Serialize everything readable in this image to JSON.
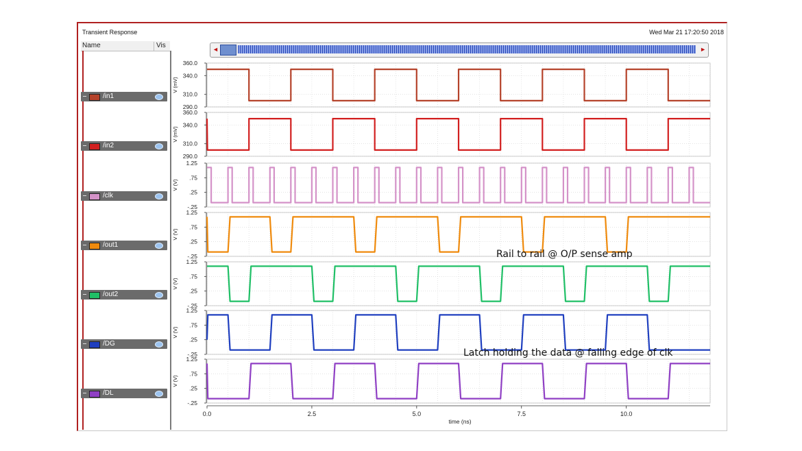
{
  "window": {
    "title": "Transient Response",
    "timestamp": "Wed Mar 21 17:20:50 2018",
    "name_header": "Name",
    "vis_header": "Vis"
  },
  "colors": {
    "in1": "#b5422a",
    "in2": "#d21f1f",
    "clk": "#d492c8",
    "out1": "#ef8a0c",
    "out2": "#1fbf66",
    "DG": "#1f3fbf",
    "DL": "#8f3fc4"
  },
  "annotations": {
    "rail": "Rail to rail @ O/P sense amp",
    "latch": "Latch holding the data @ falling edge of clk"
  },
  "chart_data": {
    "type": "line",
    "xlabel": "time (ns)",
    "xlim": [
      0,
      12
    ],
    "xticks": [
      "0.0",
      "2.5",
      "5.0",
      "7.5",
      "10.0"
    ],
    "xtick_values": [
      0,
      2.5,
      5.0,
      7.5,
      10.0
    ],
    "grid": true,
    "series": [
      {
        "name": "/in1",
        "key": "in1",
        "ylabel": "V (mV)",
        "ylim": [
          290,
          360
        ],
        "yticks": [
          "360.0",
          "340.0",
          "310.0",
          "290.0"
        ],
        "ytick_values": [
          360,
          340,
          310,
          290
        ],
        "points": [
          [
            0,
            350
          ],
          [
            1,
            350
          ],
          [
            1,
            300
          ],
          [
            2,
            300
          ],
          [
            2,
            350
          ],
          [
            3,
            350
          ],
          [
            3,
            300
          ],
          [
            4,
            300
          ],
          [
            4,
            350
          ],
          [
            5,
            350
          ],
          [
            5,
            300
          ],
          [
            6,
            300
          ],
          [
            6,
            350
          ],
          [
            7,
            350
          ],
          [
            7,
            300
          ],
          [
            8,
            300
          ],
          [
            8,
            350
          ],
          [
            9,
            350
          ],
          [
            9,
            300
          ],
          [
            10,
            300
          ],
          [
            10,
            350
          ],
          [
            11,
            350
          ],
          [
            11,
            300
          ],
          [
            12,
            300
          ]
        ]
      },
      {
        "name": "/in2",
        "key": "in2",
        "ylabel": "V (mV)",
        "ylim": [
          290,
          360
        ],
        "yticks": [
          "360.0",
          "340.0",
          "310.0",
          "290.0"
        ],
        "ytick_values": [
          360,
          340,
          310,
          290
        ],
        "points": [
          [
            0,
            350
          ],
          [
            0.01,
            300
          ],
          [
            1,
            300
          ],
          [
            1,
            350
          ],
          [
            2,
            350
          ],
          [
            2,
            300
          ],
          [
            3,
            300
          ],
          [
            3,
            350
          ],
          [
            4,
            350
          ],
          [
            4,
            300
          ],
          [
            5,
            300
          ],
          [
            5,
            350
          ],
          [
            6,
            350
          ],
          [
            6,
            300
          ],
          [
            7,
            300
          ],
          [
            7,
            350
          ],
          [
            8,
            350
          ],
          [
            8,
            300
          ],
          [
            9,
            300
          ],
          [
            9,
            350
          ],
          [
            10,
            350
          ],
          [
            10,
            300
          ],
          [
            11,
            300
          ],
          [
            11,
            350
          ],
          [
            12,
            350
          ]
        ]
      },
      {
        "name": "/clk",
        "key": "clk",
        "ylabel": "V (V)",
        "ylim": [
          -0.25,
          1.25
        ],
        "yticks": [
          "1.25",
          ".75",
          ".25",
          "-.25"
        ],
        "ytick_values": [
          1.25,
          0.75,
          0.25,
          -0.25
        ],
        "points": [
          [
            0,
            1.1
          ],
          [
            0.1,
            1.1
          ],
          [
            0.1,
            -0.1
          ],
          [
            0.5,
            -0.1
          ],
          [
            0.5,
            1.1
          ],
          [
            0.6,
            1.1
          ],
          [
            0.6,
            -0.1
          ],
          [
            1.0,
            -0.1
          ],
          [
            1.0,
            1.1
          ],
          [
            1.1,
            1.1
          ],
          [
            1.1,
            -0.1
          ],
          [
            1.5,
            -0.1
          ],
          [
            1.5,
            1.1
          ],
          [
            1.6,
            1.1
          ],
          [
            1.6,
            -0.1
          ],
          [
            2.0,
            -0.1
          ],
          [
            2.0,
            1.1
          ],
          [
            2.1,
            1.1
          ],
          [
            2.1,
            -0.1
          ],
          [
            2.5,
            -0.1
          ],
          [
            2.5,
            1.1
          ],
          [
            2.6,
            1.1
          ],
          [
            2.6,
            -0.1
          ],
          [
            3.0,
            -0.1
          ],
          [
            3.0,
            1.1
          ],
          [
            3.1,
            1.1
          ],
          [
            3.1,
            -0.1
          ],
          [
            3.5,
            -0.1
          ],
          [
            3.5,
            1.1
          ],
          [
            3.6,
            1.1
          ],
          [
            3.6,
            -0.1
          ],
          [
            4.0,
            -0.1
          ],
          [
            4.0,
            1.1
          ],
          [
            4.1,
            1.1
          ],
          [
            4.1,
            -0.1
          ],
          [
            4.5,
            -0.1
          ],
          [
            4.5,
            1.1
          ],
          [
            4.6,
            1.1
          ],
          [
            4.6,
            -0.1
          ],
          [
            5.0,
            -0.1
          ],
          [
            5.0,
            1.1
          ],
          [
            5.1,
            1.1
          ],
          [
            5.1,
            -0.1
          ],
          [
            5.5,
            -0.1
          ],
          [
            5.5,
            1.1
          ],
          [
            5.6,
            1.1
          ],
          [
            5.6,
            -0.1
          ],
          [
            6.0,
            -0.1
          ],
          [
            6.0,
            1.1
          ],
          [
            6.1,
            1.1
          ],
          [
            6.1,
            -0.1
          ],
          [
            6.5,
            -0.1
          ],
          [
            6.5,
            1.1
          ],
          [
            6.6,
            1.1
          ],
          [
            6.6,
            -0.1
          ],
          [
            7.0,
            -0.1
          ],
          [
            7.0,
            1.1
          ],
          [
            7.1,
            1.1
          ],
          [
            7.1,
            -0.1
          ],
          [
            7.5,
            -0.1
          ],
          [
            7.5,
            1.1
          ],
          [
            7.6,
            1.1
          ],
          [
            7.6,
            -0.1
          ],
          [
            8.0,
            -0.1
          ],
          [
            8.0,
            1.1
          ],
          [
            8.1,
            1.1
          ],
          [
            8.1,
            -0.1
          ],
          [
            8.5,
            -0.1
          ],
          [
            8.5,
            1.1
          ],
          [
            8.6,
            1.1
          ],
          [
            8.6,
            -0.1
          ],
          [
            9.0,
            -0.1
          ],
          [
            9.0,
            1.1
          ],
          [
            9.1,
            1.1
          ],
          [
            9.1,
            -0.1
          ],
          [
            9.5,
            -0.1
          ],
          [
            9.5,
            1.1
          ],
          [
            9.6,
            1.1
          ],
          [
            9.6,
            -0.1
          ],
          [
            10.0,
            -0.1
          ],
          [
            10.0,
            1.1
          ],
          [
            10.1,
            1.1
          ],
          [
            10.1,
            -0.1
          ],
          [
            10.5,
            -0.1
          ],
          [
            10.5,
            1.1
          ],
          [
            10.6,
            1.1
          ],
          [
            10.6,
            -0.1
          ],
          [
            11.0,
            -0.1
          ],
          [
            11.0,
            1.1
          ],
          [
            11.1,
            1.1
          ],
          [
            11.1,
            -0.1
          ],
          [
            11.5,
            -0.1
          ],
          [
            11.5,
            1.1
          ],
          [
            11.6,
            1.1
          ],
          [
            11.6,
            -0.1
          ],
          [
            12,
            -0.1
          ]
        ]
      },
      {
        "name": "/out1",
        "key": "out1",
        "ylabel": "V (V)",
        "ylim": [
          -0.25,
          1.25
        ],
        "yticks": [
          "1.25",
          ".75",
          ".25",
          "-.25"
        ],
        "ytick_values": [
          1.25,
          0.75,
          0.25,
          -0.25
        ],
        "points": [
          [
            0,
            1.1
          ],
          [
            0.02,
            -0.1
          ],
          [
            0.5,
            -0.1
          ],
          [
            0.55,
            1.1
          ],
          [
            1.5,
            1.1
          ],
          [
            1.55,
            -0.1
          ],
          [
            2.0,
            -0.1
          ],
          [
            2.05,
            1.1
          ],
          [
            3.5,
            1.1
          ],
          [
            3.55,
            -0.1
          ],
          [
            4.0,
            -0.1
          ],
          [
            4.05,
            1.1
          ],
          [
            5.5,
            1.1
          ],
          [
            5.55,
            -0.1
          ],
          [
            6.0,
            -0.1
          ],
          [
            6.05,
            1.1
          ],
          [
            7.5,
            1.1
          ],
          [
            7.55,
            -0.1
          ],
          [
            8.0,
            -0.1
          ],
          [
            8.05,
            1.1
          ],
          [
            9.5,
            1.1
          ],
          [
            9.55,
            -0.1
          ],
          [
            10.0,
            -0.1
          ],
          [
            10.05,
            1.1
          ],
          [
            12,
            1.1
          ]
        ]
      },
      {
        "name": "/out2",
        "key": "out2",
        "ylabel": "V (V)",
        "ylim": [
          -0.25,
          1.25
        ],
        "yticks": [
          "1.25",
          ".75",
          ".25",
          "-.25"
        ],
        "ytick_values": [
          1.25,
          0.75,
          0.25,
          -0.25
        ],
        "points": [
          [
            0,
            1.1
          ],
          [
            0.5,
            1.1
          ],
          [
            0.55,
            -0.1
          ],
          [
            1.0,
            -0.1
          ],
          [
            1.05,
            1.1
          ],
          [
            2.5,
            1.1
          ],
          [
            2.55,
            -0.1
          ],
          [
            3.0,
            -0.1
          ],
          [
            3.05,
            1.1
          ],
          [
            4.5,
            1.1
          ],
          [
            4.55,
            -0.1
          ],
          [
            5.0,
            -0.1
          ],
          [
            5.05,
            1.1
          ],
          [
            6.5,
            1.1
          ],
          [
            6.55,
            -0.1
          ],
          [
            7.0,
            -0.1
          ],
          [
            7.05,
            1.1
          ],
          [
            8.5,
            1.1
          ],
          [
            8.55,
            -0.1
          ],
          [
            9.0,
            -0.1
          ],
          [
            9.05,
            1.1
          ],
          [
            10.5,
            1.1
          ],
          [
            10.55,
            -0.1
          ],
          [
            11.0,
            -0.1
          ],
          [
            11.05,
            1.1
          ],
          [
            12,
            1.1
          ]
        ]
      },
      {
        "name": "/DG",
        "key": "DG",
        "ylabel": "V (V)",
        "ylim": [
          -0.25,
          1.25
        ],
        "yticks": [
          "1.25",
          ".75",
          ".25",
          "-.25"
        ],
        "ytick_values": [
          1.25,
          0.75,
          0.25,
          -0.25
        ],
        "points": [
          [
            0,
            0.25
          ],
          [
            0.02,
            1.1
          ],
          [
            0.5,
            1.1
          ],
          [
            0.55,
            -0.1
          ],
          [
            1.5,
            -0.1
          ],
          [
            1.55,
            1.1
          ],
          [
            2.5,
            1.1
          ],
          [
            2.55,
            -0.1
          ],
          [
            3.5,
            -0.1
          ],
          [
            3.55,
            1.1
          ],
          [
            4.5,
            1.1
          ],
          [
            4.55,
            -0.1
          ],
          [
            5.5,
            -0.1
          ],
          [
            5.55,
            1.1
          ],
          [
            6.5,
            1.1
          ],
          [
            6.55,
            -0.1
          ],
          [
            7.5,
            -0.1
          ],
          [
            7.55,
            1.1
          ],
          [
            8.5,
            1.1
          ],
          [
            8.55,
            -0.1
          ],
          [
            9.5,
            -0.1
          ],
          [
            9.55,
            1.1
          ],
          [
            10.5,
            1.1
          ],
          [
            10.55,
            -0.1
          ],
          [
            12,
            -0.1
          ]
        ]
      },
      {
        "name": "/DL",
        "key": "DL",
        "ylabel": "V (V)",
        "ylim": [
          -0.25,
          1.25
        ],
        "yticks": [
          "1.25",
          ".75",
          ".25",
          "-.25"
        ],
        "ytick_values": [
          1.25,
          0.75,
          0.25,
          -0.25
        ],
        "points": [
          [
            0,
            1.1
          ],
          [
            0.02,
            -0.1
          ],
          [
            1.0,
            -0.1
          ],
          [
            1.05,
            1.1
          ],
          [
            2.0,
            1.1
          ],
          [
            2.05,
            -0.1
          ],
          [
            3.0,
            -0.1
          ],
          [
            3.05,
            1.1
          ],
          [
            4.0,
            1.1
          ],
          [
            4.05,
            -0.1
          ],
          [
            5.0,
            -0.1
          ],
          [
            5.05,
            1.1
          ],
          [
            6.0,
            1.1
          ],
          [
            6.05,
            -0.1
          ],
          [
            7.0,
            -0.1
          ],
          [
            7.05,
            1.1
          ],
          [
            8.0,
            1.1
          ],
          [
            8.05,
            -0.1
          ],
          [
            9.0,
            -0.1
          ],
          [
            9.05,
            1.1
          ],
          [
            10.0,
            1.1
          ],
          [
            10.05,
            -0.1
          ],
          [
            11.0,
            -0.1
          ],
          [
            11.05,
            1.1
          ],
          [
            12,
            1.1
          ]
        ]
      }
    ]
  }
}
